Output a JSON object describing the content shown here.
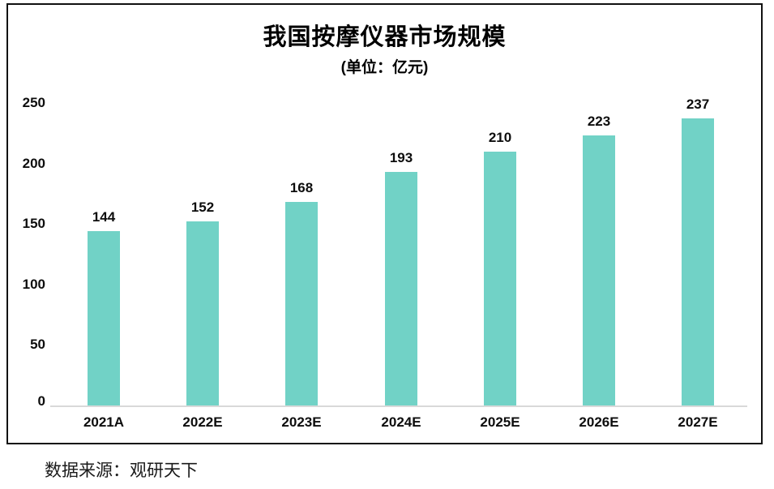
{
  "chart_data": {
    "type": "bar",
    "title": "我国按摩仪器市场规模",
    "subtitle": "(单位：亿元)",
    "categories": [
      "2021A",
      "2022E",
      "2023E",
      "2024E",
      "2025E",
      "2026E",
      "2027E"
    ],
    "values": [
      144,
      152,
      168,
      193,
      210,
      223,
      237
    ],
    "yticks": [
      0,
      50,
      100,
      150,
      200,
      250
    ],
    "ylim": [
      0,
      250
    ],
    "grid": false,
    "legend_position": "none",
    "value_labels_shown": true,
    "bar_color": "#71d2c6",
    "axis_line_color": "#d9d9d9",
    "text_color": "#0d0d0d"
  },
  "source": "数据来源：观研天下"
}
